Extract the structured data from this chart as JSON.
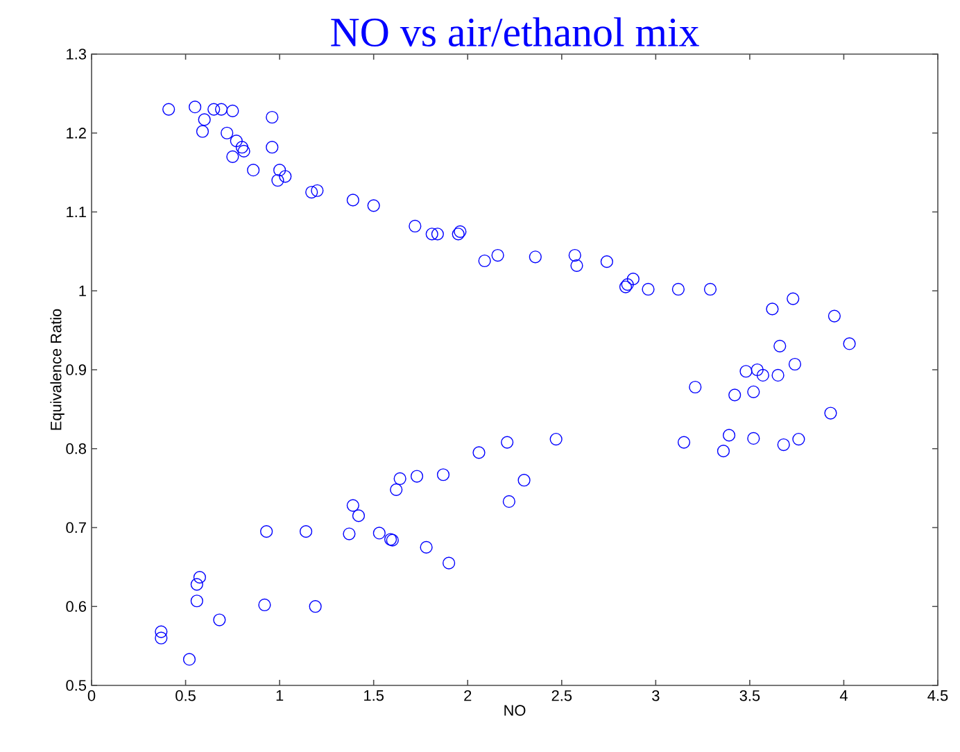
{
  "chart_data": {
    "type": "scatter",
    "title": "NO vs air/ethanol mix",
    "xlabel": "NO",
    "ylabel": "Equivalence Ratio",
    "xlim": [
      0,
      4.5
    ],
    "ylim": [
      0.5,
      1.3
    ],
    "xticks": [
      0,
      0.5,
      1,
      1.5,
      2,
      2.5,
      3,
      3.5,
      4,
      4.5
    ],
    "yticks": [
      0.5,
      0.6,
      0.7,
      0.8,
      0.9,
      1,
      1.1,
      1.2,
      1.3
    ],
    "grid": false,
    "marker": "circle",
    "series": [
      {
        "color": "#0000ff",
        "x": [
          0.41,
          0.55,
          0.65,
          0.69,
          0.75,
          0.6,
          0.59,
          0.96,
          0.72,
          0.77,
          0.8,
          0.81,
          0.75,
          0.96,
          0.86,
          1.0,
          1.03,
          0.99,
          1.17,
          1.2,
          1.39,
          1.5,
          1.72,
          1.81,
          1.84,
          1.95,
          1.96,
          2.09,
          2.16,
          2.36,
          2.57,
          2.58,
          2.74,
          2.85,
          2.84,
          2.88,
          2.96,
          3.12,
          3.29,
          3.62,
          3.73,
          3.95,
          4.03,
          3.66,
          3.54,
          3.48,
          3.57,
          3.65,
          3.74,
          3.21,
          3.42,
          3.52,
          3.93,
          3.15,
          3.39,
          3.36,
          3.52,
          3.68,
          3.76,
          2.06,
          2.21,
          1.87,
          1.73,
          1.64,
          1.62,
          1.39,
          1.42,
          0.93,
          1.14,
          1.37,
          1.53,
          1.59,
          1.6,
          1.78,
          1.9,
          0.575,
          0.56,
          0.56,
          0.68,
          0.92,
          1.19,
          0.37,
          0.37,
          0.52,
          2.47,
          2.3,
          2.22
        ],
        "values": [
          1.23,
          1.233,
          1.23,
          1.23,
          1.228,
          1.217,
          1.202,
          1.22,
          1.2,
          1.19,
          1.182,
          1.177,
          1.17,
          1.182,
          1.153,
          1.153,
          1.145,
          1.14,
          1.125,
          1.127,
          1.115,
          1.108,
          1.082,
          1.072,
          1.072,
          1.072,
          1.075,
          1.038,
          1.045,
          1.043,
          1.045,
          1.032,
          1.037,
          1.008,
          1.005,
          1.015,
          1.002,
          1.002,
          1.002,
          0.977,
          0.99,
          0.968,
          0.933,
          0.93,
          0.9,
          0.898,
          0.893,
          0.893,
          0.907,
          0.878,
          0.868,
          0.872,
          0.845,
          0.808,
          0.817,
          0.797,
          0.813,
          0.805,
          0.812,
          0.795,
          0.808,
          0.767,
          0.765,
          0.762,
          0.748,
          0.728,
          0.715,
          0.695,
          0.695,
          0.692,
          0.693,
          0.685,
          0.684,
          0.675,
          0.655,
          0.637,
          0.628,
          0.607,
          0.583,
          0.602,
          0.6,
          0.568,
          0.56,
          0.533,
          0.812,
          0.76,
          0.733
        ]
      }
    ]
  }
}
